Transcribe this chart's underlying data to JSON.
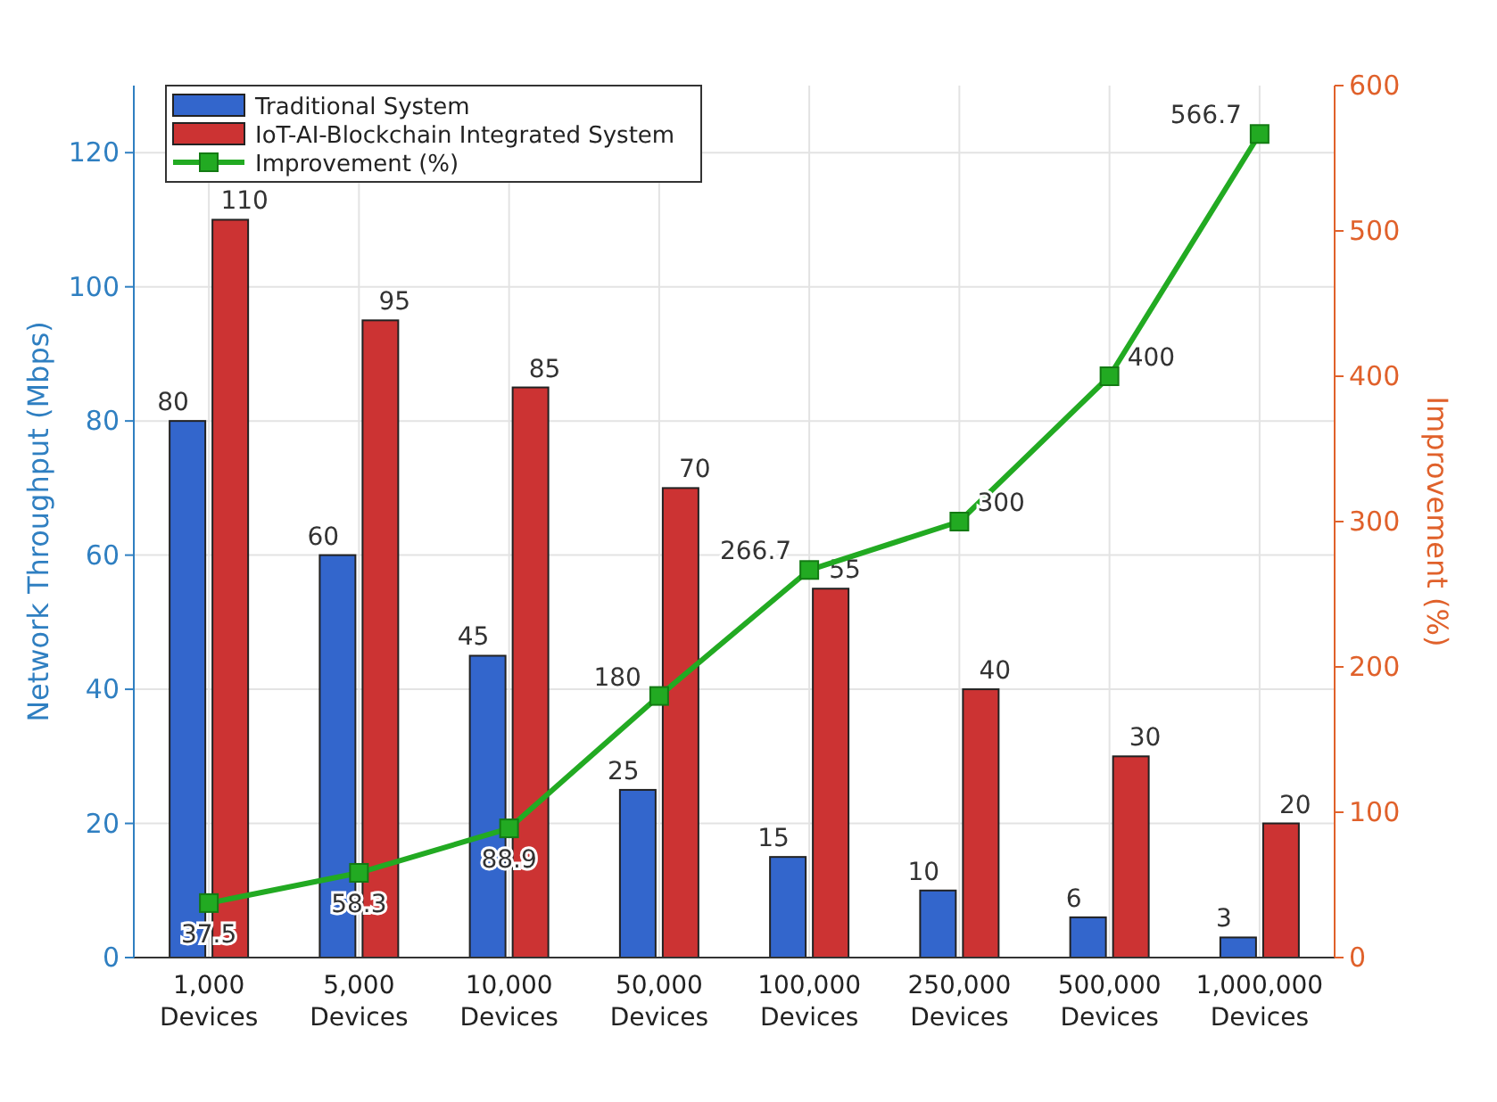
{
  "chart_data": {
    "type": "bar",
    "ylabel": "Network Throughput (Mbps)",
    "y2label": "Improvement (%)",
    "categories": [
      "1,000 Devices",
      "5,000 Devices",
      "10,000 Devices",
      "50,000 Devices",
      "100,000 Devices",
      "250,000 Devices",
      "500,000 Devices",
      "1,000,000 Devices"
    ],
    "series": [
      {
        "name": "Traditional System",
        "color": "#3366cc",
        "values": [
          80,
          60,
          45,
          25,
          15,
          10,
          6,
          3
        ]
      },
      {
        "name": "IoT-AI-Blockchain Integrated System",
        "color": "#cc3333",
        "values": [
          110,
          95,
          85,
          70,
          55,
          40,
          30,
          20
        ]
      },
      {
        "name": "Improvement (%)",
        "type": "line",
        "axis": "y2",
        "color": "#22aa22",
        "marker": "square",
        "values": [
          37.5,
          58.3,
          88.9,
          180,
          266.7,
          300,
          400,
          566.7
        ]
      }
    ],
    "ylim": [
      0,
      130
    ],
    "yticks": [
      0,
      20,
      40,
      60,
      80,
      100,
      120
    ],
    "y2lim": [
      0,
      600
    ],
    "y2ticks": [
      0,
      100,
      200,
      300,
      400,
      500,
      600
    ],
    "grid": true,
    "legend": "top left",
    "data_labels": true
  }
}
